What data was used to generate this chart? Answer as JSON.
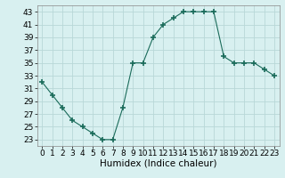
{
  "x": [
    0,
    1,
    2,
    3,
    4,
    5,
    6,
    7,
    8,
    9,
    10,
    11,
    12,
    13,
    14,
    15,
    16,
    17,
    18,
    19,
    20,
    21,
    22,
    23
  ],
  "y": [
    32,
    30,
    28,
    26,
    25,
    24,
    23,
    23,
    28,
    35,
    35,
    39,
    41,
    42,
    43,
    43,
    43,
    43,
    36,
    35,
    35,
    35,
    34,
    33
  ],
  "line_color": "#1a6b5a",
  "marker": "+",
  "marker_size": 4,
  "bg_color": "#d8f0f0",
  "grid_color": "#b8d8d8",
  "xlabel": "Humidex (Indice chaleur)",
  "xlim": [
    -0.5,
    23.5
  ],
  "ylim": [
    22,
    44
  ],
  "yticks": [
    23,
    25,
    27,
    29,
    31,
    33,
    35,
    37,
    39,
    41,
    43
  ],
  "xticks": [
    0,
    1,
    2,
    3,
    4,
    5,
    6,
    7,
    8,
    9,
    10,
    11,
    12,
    13,
    14,
    15,
    16,
    17,
    18,
    19,
    20,
    21,
    22,
    23
  ],
  "font_size": 6.5,
  "xlabel_fontsize": 7.5
}
